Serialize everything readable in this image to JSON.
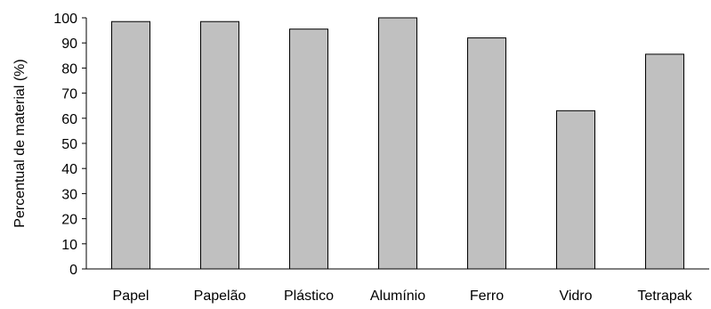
{
  "chart_data": {
    "type": "bar",
    "title": "",
    "xlabel": "",
    "ylabel": "Percentual de material (%)",
    "categories": [
      "Papel",
      "Papelão",
      "Plástico",
      "Alumínio",
      "Ferro",
      "Vidro",
      "Tetrapak"
    ],
    "values": [
      98.5,
      98.5,
      95.5,
      100,
      92,
      63,
      85.5
    ],
    "ylim": [
      0,
      100
    ],
    "yticks": [
      "0",
      "10",
      "20",
      "30",
      "40",
      "50",
      "60",
      "70",
      "80",
      "90",
      "100"
    ],
    "grid": false,
    "legend": "none",
    "colors": {
      "bar_fill": "#c0c0c0",
      "bar_stroke": "#000000"
    }
  }
}
